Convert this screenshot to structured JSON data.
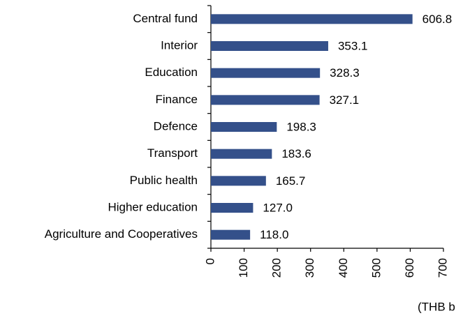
{
  "chart_data": {
    "type": "hbar",
    "categories": [
      "Central fund",
      "Interior",
      "Education",
      "Finance",
      "Defence",
      "Transport",
      "Public health",
      "Higher education",
      "Agriculture and Cooperatives"
    ],
    "values": [
      606.8,
      353.1,
      328.3,
      327.1,
      198.3,
      183.6,
      165.7,
      127.0,
      118.0
    ],
    "value_labels": [
      "606.8",
      "353.1",
      "328.3",
      "327.1",
      "198.3",
      "183.6",
      "165.7",
      "127.0",
      "118.0"
    ],
    "color": "#34508a",
    "xlim": [
      0,
      700
    ],
    "xticks": [
      0,
      100,
      200,
      300,
      400,
      500,
      600,
      700
    ],
    "xlabel": "(THB b"
  }
}
